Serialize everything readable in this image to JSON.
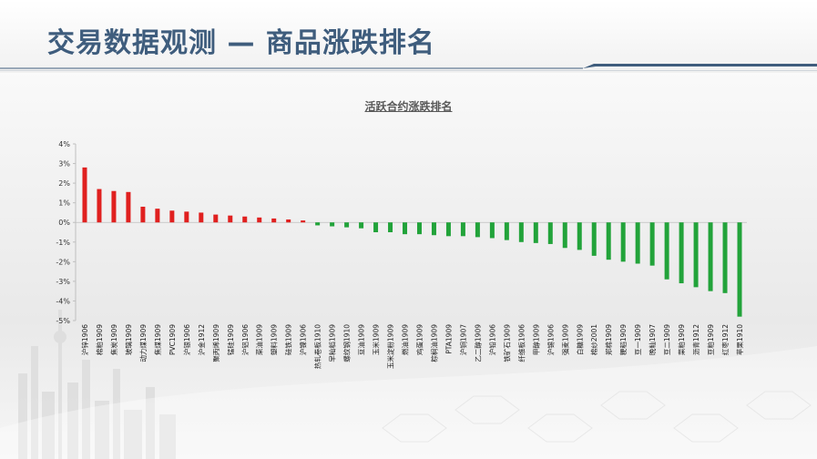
{
  "page": {
    "title": "交易数据观测 — 商品涨跌排名"
  },
  "chart_data": {
    "type": "bar",
    "title": "活跃合约涨跌排名",
    "xlabel": "",
    "ylabel": "",
    "ylim": [
      -0.05,
      0.04
    ],
    "yticks": [
      {
        "value": 0.04,
        "label": "4%"
      },
      {
        "value": 0.03,
        "label": "3%"
      },
      {
        "value": 0.02,
        "label": "2%"
      },
      {
        "value": 0.01,
        "label": "1%"
      },
      {
        "value": 0.0,
        "label": "0%"
      },
      {
        "value": -0.01,
        "label": "-1%"
      },
      {
        "value": -0.02,
        "label": "-2%"
      },
      {
        "value": -0.03,
        "label": "-3%"
      },
      {
        "value": -0.04,
        "label": "-4%"
      },
      {
        "value": -0.05,
        "label": "-5%"
      }
    ],
    "grid": false,
    "legend": "none",
    "colors": {
      "positive": "#e0201f",
      "negative": "#22a33a"
    },
    "categories": [
      "沪锌1906",
      "棉粕1909",
      "焦炭1909",
      "玻璃1909",
      "动力煤1909",
      "焦煤1909",
      "PVC1909",
      "沪银1906",
      "沪金1912",
      "聚丙烯1909",
      "锰硅1909",
      "沪铝1906",
      "菜油1909",
      "塑料1909",
      "硅铁1909",
      "沪镍1906",
      "热轧卷板1910",
      "早籼稻1909",
      "螺纹钢1910",
      "豆油1909",
      "玉米1909",
      "玉米淀粉1909",
      "燃油1909",
      "鸡蛋1909",
      "棕榈油1909",
      "PTA1909",
      "沪铜1907",
      "乙二醇1909",
      "沪铅1906",
      "铁矿石1909",
      "纤维板1906",
      "甲醇1909",
      "沪锡1906",
      "强麦1909",
      "白糖1909",
      "棉纱2001",
      "郑棉1909",
      "粳稻1909",
      "豆一1909",
      "晚籼1907",
      "豆二1909",
      "菜粕1909",
      "沥青1912",
      "豆粕1909",
      "红枣1912",
      "苹果1910"
    ],
    "values": [
      0.028,
      0.017,
      0.016,
      0.0155,
      0.008,
      0.007,
      0.006,
      0.0055,
      0.005,
      0.004,
      0.0035,
      0.003,
      0.0025,
      0.002,
      0.0015,
      0.001,
      -0.0015,
      -0.002,
      -0.0025,
      -0.003,
      -0.005,
      -0.005,
      -0.006,
      -0.006,
      -0.0065,
      -0.007,
      -0.007,
      -0.0075,
      -0.008,
      -0.009,
      -0.01,
      -0.0105,
      -0.011,
      -0.013,
      -0.014,
      -0.017,
      -0.019,
      -0.02,
      -0.021,
      -0.022,
      -0.029,
      -0.031,
      -0.033,
      -0.035,
      -0.036,
      -0.048
    ]
  }
}
